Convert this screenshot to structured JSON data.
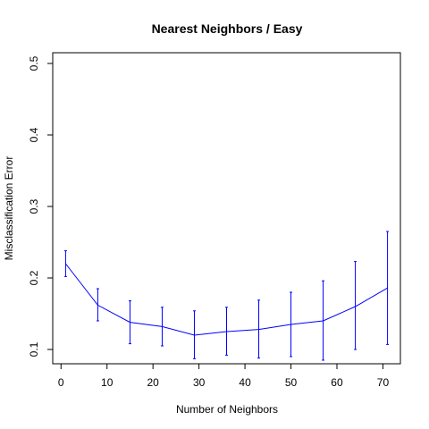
{
  "chart_data": {
    "type": "line",
    "title": "Nearest Neighbors / Easy",
    "xlabel": "Number of Neighbors",
    "ylabel": "Misclassification Error",
    "xlim": [
      -1.8,
      73.8
    ],
    "ylim": [
      0.08,
      0.515
    ],
    "xticks": [
      0,
      10,
      20,
      30,
      40,
      50,
      60,
      70
    ],
    "yticks": [
      0.1,
      0.2,
      0.3,
      0.4,
      0.5
    ],
    "grid": false,
    "line_color": "#0000ff",
    "series": [
      {
        "x": [
          1,
          8,
          15,
          22,
          29,
          36,
          43,
          50,
          57,
          64,
          71
        ],
        "y": [
          0.22,
          0.162,
          0.138,
          0.132,
          0.12,
          0.125,
          0.128,
          0.135,
          0.14,
          0.16,
          0.186
        ],
        "y_lower": [
          0.202,
          0.14,
          0.108,
          0.105,
          0.087,
          0.092,
          0.088,
          0.09,
          0.085,
          0.1,
          0.107
        ],
        "y_upper": [
          0.238,
          0.185,
          0.168,
          0.159,
          0.154,
          0.159,
          0.169,
          0.18,
          0.196,
          0.223,
          0.265
        ]
      }
    ]
  }
}
